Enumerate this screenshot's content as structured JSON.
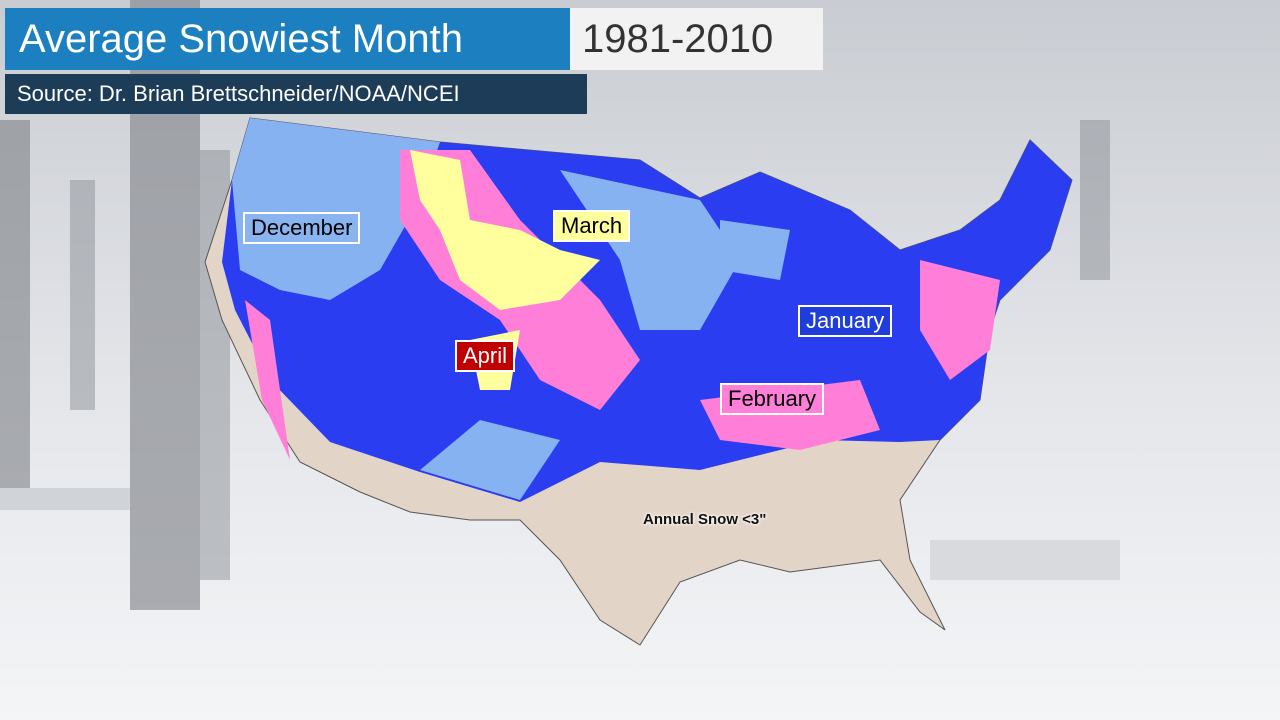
{
  "header": {
    "title": "Average Snowiest Month",
    "period": "1981-2010",
    "source": "Source: Dr. Brian Brettschneider/NOAA/NCEI"
  },
  "map": {
    "labels": [
      "December",
      "March",
      "April",
      "January",
      "February"
    ],
    "note": "Annual Snow <3\""
  }
}
